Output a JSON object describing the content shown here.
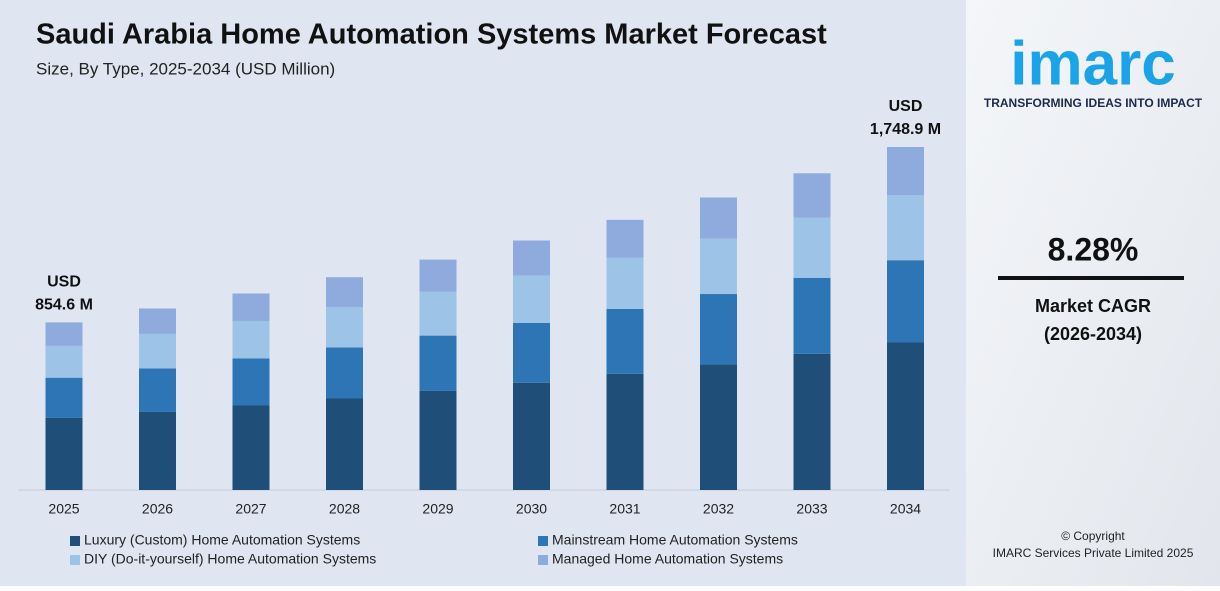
{
  "chart_data": {
    "type": "stacked-bar",
    "title": "Saudi Arabia Home Automation Systems Market Forecast",
    "subtitle": "Size, By Type, 2025-2034 (USD Million)",
    "categories": [
      "2025",
      "2026",
      "2027",
      "2028",
      "2029",
      "2030",
      "2031",
      "2032",
      "2033",
      "2034"
    ],
    "series": [
      {
        "name": "Luxury (Custom) Home Automation Systems",
        "color": "#1f4e79",
        "values": [
          367.5,
          397.9,
          430.9,
          466.6,
          505.2,
          547.0,
          592.3,
          641.3,
          694.4,
          752.0
        ]
      },
      {
        "name": "Mainstream Home Automation Systems",
        "color": "#2e75b6",
        "values": [
          205.1,
          222.1,
          240.5,
          260.4,
          282.0,
          305.3,
          330.6,
          357.9,
          387.6,
          419.7
        ]
      },
      {
        "name": "DIY (Do-it-yourself) Home Automation Systems",
        "color": "#9dc3e6",
        "values": [
          162.4,
          175.8,
          190.4,
          206.2,
          223.2,
          241.7,
          261.7,
          283.4,
          306.8,
          332.3
        ]
      },
      {
        "name": "Managed Home Automation Systems",
        "color": "#8faadc",
        "values": [
          119.6,
          129.6,
          140.2,
          151.8,
          164.4,
          178.1,
          192.8,
          208.8,
          226.1,
          244.9
        ]
      }
    ],
    "annotations": [
      {
        "category": 0,
        "lines": [
          "USD",
          "854.6 M"
        ]
      },
      {
        "category": 9,
        "lines": [
          "USD",
          "1,748.9 M"
        ]
      }
    ]
  },
  "side_panel": {
    "logo": "imarc",
    "tagline": "TRANSFORMING IDEAS INTO IMPACT",
    "cagr_value": "8.28%",
    "cagr_label": "Market CAGR",
    "cagr_period": "(2026-2034)",
    "copyright": "© Copyright",
    "company": "IMARC Services Private Limited 2025"
  }
}
